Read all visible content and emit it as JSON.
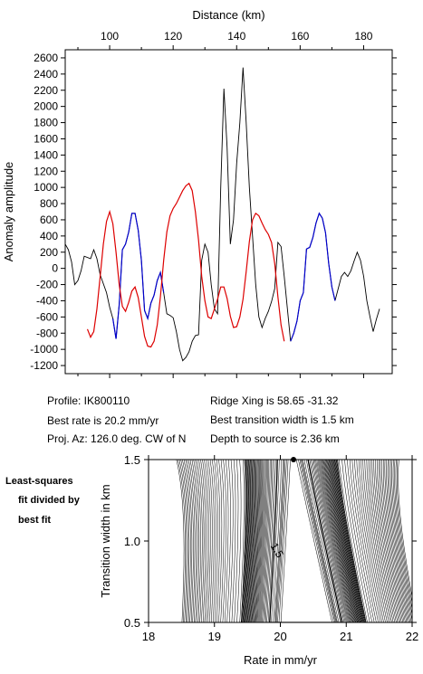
{
  "chart_data": [
    {
      "type": "line",
      "title": "",
      "xlabel": "Distance (km)",
      "ylabel": "Anomaly amplitude",
      "xlim": [
        86,
        189
      ],
      "ylim": [
        -1300,
        2700
      ],
      "x_ticks": [
        "100",
        "120",
        "140",
        "160",
        "180"
      ],
      "y_ticks": [
        "2600",
        "2400",
        "2200",
        "2000",
        "1800",
        "1600",
        "1400",
        "1200",
        "1000",
        "800",
        "600",
        "400",
        "200",
        "0",
        "-200",
        "-400",
        "-600",
        "-800",
        "-1000",
        "-1200"
      ],
      "series": [
        {
          "color": "#000000",
          "points": [
            [
              86,
              300
            ],
            [
              87,
              230
            ],
            [
              88,
              80
            ],
            [
              89,
              -200
            ],
            [
              90,
              -150
            ],
            [
              91,
              -30
            ],
            [
              92,
              150
            ],
            [
              94,
              120
            ],
            [
              95,
              230
            ],
            [
              96,
              120
            ],
            [
              97,
              -80
            ],
            [
              99,
              -300
            ],
            [
              100,
              -480
            ],
            [
              101,
              -620
            ],
            [
              102,
              -870
            ],
            [
              103,
              -450
            ],
            [
              104,
              230
            ],
            [
              105,
              300
            ],
            [
              106,
              450
            ],
            [
              107,
              680
            ],
            [
              108,
              680
            ],
            [
              109,
              470
            ],
            [
              110,
              100
            ],
            [
              111,
              -520
            ],
            [
              112,
              -620
            ],
            [
              113,
              -430
            ],
            [
              114,
              -330
            ],
            [
              115,
              -150
            ],
            [
              116,
              -50
            ],
            [
              117,
              -300
            ],
            [
              118,
              -560
            ],
            [
              119,
              -580
            ],
            [
              120,
              -610
            ],
            [
              121,
              -780
            ],
            [
              122,
              -1000
            ],
            [
              123,
              -1140
            ],
            [
              124,
              -1100
            ],
            [
              125,
              -1030
            ],
            [
              126,
              -900
            ],
            [
              127,
              -830
            ],
            [
              128,
              -820
            ],
            [
              129,
              100
            ],
            [
              130,
              300
            ],
            [
              131,
              200
            ],
            [
              132,
              -200
            ],
            [
              133,
              -500
            ],
            [
              134,
              -560
            ],
            [
              135,
              1000
            ],
            [
              136,
              2220
            ],
            [
              137,
              1500
            ],
            [
              138,
              300
            ],
            [
              139,
              600
            ],
            [
              140,
              1300
            ],
            [
              141,
              1800
            ],
            [
              142,
              2480
            ],
            [
              143,
              1800
            ],
            [
              144,
              1000
            ],
            [
              145,
              400
            ],
            [
              146,
              -200
            ],
            [
              147,
              -600
            ],
            [
              148,
              -730
            ],
            [
              149,
              -620
            ],
            [
              150,
              -530
            ],
            [
              151,
              -410
            ],
            [
              152,
              -250
            ],
            [
              153,
              320
            ],
            [
              154,
              270
            ],
            [
              155,
              -100
            ],
            [
              156,
              -500
            ],
            [
              157,
              -900
            ],
            [
              158,
              -800
            ],
            [
              159,
              -650
            ],
            [
              160,
              -400
            ],
            [
              161,
              -300
            ],
            [
              162,
              240
            ],
            [
              163,
              260
            ],
            [
              164,
              380
            ],
            [
              165,
              560
            ],
            [
              166,
              680
            ],
            [
              167,
              620
            ],
            [
              168,
              440
            ],
            [
              169,
              60
            ],
            [
              170,
              -230
            ],
            [
              171,
              -400
            ],
            [
              172,
              -250
            ],
            [
              173,
              -100
            ],
            [
              174,
              -50
            ],
            [
              175,
              -100
            ],
            [
              176,
              -30
            ],
            [
              177,
              90
            ],
            [
              178,
              200
            ],
            [
              179,
              100
            ],
            [
              180,
              -100
            ],
            [
              181,
              -400
            ],
            [
              182,
              -600
            ],
            [
              183,
              -780
            ],
            [
              184,
              -630
            ],
            [
              185,
              -500
            ]
          ]
        },
        {
          "color": "#0000cc",
          "points": [
            [
              101,
              -620
            ],
            [
              102,
              -870
            ],
            [
              103,
              -450
            ],
            [
              104,
              230
            ],
            [
              105,
              300
            ],
            [
              106,
              450
            ],
            [
              107,
              680
            ],
            [
              108,
              680
            ],
            [
              109,
              470
            ],
            [
              110,
              100
            ],
            [
              111,
              -520
            ],
            [
              112,
              -620
            ],
            [
              113,
              -430
            ],
            [
              114,
              -330
            ],
            [
              115,
              -150
            ],
            [
              116,
              -50
            ],
            [
              117,
              -300
            ]
          ]
        },
        {
          "color": "#0000cc",
          "points": [
            [
              157,
              -900
            ],
            [
              158,
              -800
            ],
            [
              159,
              -650
            ],
            [
              160,
              -400
            ],
            [
              161,
              -300
            ],
            [
              162,
              240
            ],
            [
              163,
              260
            ],
            [
              164,
              380
            ],
            [
              165,
              560
            ],
            [
              166,
              680
            ],
            [
              167,
              620
            ],
            [
              168,
              440
            ],
            [
              169,
              60
            ],
            [
              170,
              -230
            ],
            [
              171,
              -400
            ]
          ]
        },
        {
          "color": "#dd0000",
          "points": [
            [
              93,
              -750
            ],
            [
              94,
              -850
            ],
            [
              95,
              -780
            ],
            [
              96,
              -500
            ],
            [
              97,
              -100
            ],
            [
              98,
              300
            ],
            [
              99,
              580
            ],
            [
              100,
              700
            ],
            [
              101,
              550
            ],
            [
              102,
              200
            ],
            [
              103,
              -200
            ],
            [
              104,
              -470
            ],
            [
              105,
              -530
            ],
            [
              106,
              -420
            ],
            [
              107,
              -280
            ],
            [
              108,
              -230
            ],
            [
              109,
              -360
            ],
            [
              110,
              -600
            ],
            [
              111,
              -840
            ],
            [
              112,
              -960
            ],
            [
              113,
              -970
            ],
            [
              114,
              -900
            ],
            [
              115,
              -700
            ],
            [
              116,
              -350
            ],
            [
              117,
              100
            ],
            [
              118,
              450
            ],
            [
              119,
              650
            ],
            [
              120,
              740
            ],
            [
              121,
              800
            ],
            [
              122,
              880
            ],
            [
              123,
              960
            ],
            [
              124,
              1020
            ],
            [
              125,
              1050
            ],
            [
              126,
              960
            ],
            [
              127,
              700
            ],
            [
              128,
              350
            ],
            [
              129,
              -100
            ],
            [
              130,
              -400
            ],
            [
              131,
              -600
            ],
            [
              132,
              -620
            ],
            [
              133,
              -500
            ],
            [
              134,
              -380
            ],
            [
              135,
              -230
            ],
            [
              136,
              -230
            ],
            [
              137,
              -370
            ],
            [
              138,
              -590
            ],
            [
              139,
              -730
            ],
            [
              140,
              -720
            ],
            [
              141,
              -600
            ],
            [
              142,
              -380
            ],
            [
              143,
              -40
            ],
            [
              144,
              330
            ],
            [
              145,
              600
            ],
            [
              146,
              680
            ],
            [
              147,
              650
            ],
            [
              148,
              560
            ],
            [
              149,
              480
            ],
            [
              150,
              420
            ],
            [
              151,
              320
            ],
            [
              152,
              60
            ],
            [
              153,
              -350
            ],
            [
              154,
              -700
            ],
            [
              155,
              -900
            ]
          ]
        }
      ]
    },
    {
      "type": "contour",
      "title": "",
      "xlabel": "Rate in mm/yr",
      "ylabel": "Transition width in km",
      "xlim": [
        18,
        22
      ],
      "ylim": [
        0.5,
        1.5
      ],
      "x_ticks": [
        "18",
        "19",
        "20",
        "21",
        "22"
      ],
      "y_ticks": [
        "1.5",
        "1.0",
        "0.5"
      ],
      "contour_label": "1.5",
      "best_fit_marker": {
        "x": 20.2,
        "y": 1.5
      },
      "side_label": [
        "Least-squares",
        "fit divided by",
        "best fit"
      ]
    }
  ],
  "info": {
    "profile": "Profile: IK800110",
    "best_rate": "Best rate is 20.2 mm/yr",
    "proj_az": "Proj. Az: 126.0 deg. CW of N",
    "ridge_xing": "Ridge Xing is 58.65 -31.32",
    "best_width": "Best transition width is 1.5 km",
    "depth": "Depth to source is   2.36 km"
  },
  "colors": {
    "observed": "#000000",
    "fit_window": "#0000cc",
    "model": "#dd0000"
  }
}
